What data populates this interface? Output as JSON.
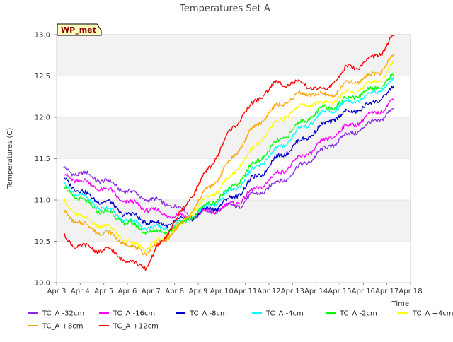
{
  "chart_data": {
    "type": "line",
    "title": "Temperatures Set A",
    "xlabel": "Time",
    "ylabel": "Temperatures (C)",
    "badge": "WP_met",
    "xticks": [
      "Apr 3",
      "Apr 4",
      "Apr 5",
      "Apr 6",
      "Apr 7",
      "Apr 8",
      "Apr 9",
      "Apr 10",
      "Apr 11",
      "Apr 12",
      "Apr 13",
      "Apr 14",
      "Apr 15",
      "Apr 16",
      "Apr 17",
      "Apr 18"
    ],
    "yticks": [
      "10.0",
      "10.5",
      "11.0",
      "11.5",
      "12.0",
      "12.5",
      "13.0"
    ],
    "xlim": [
      3,
      18
    ],
    "ylim": [
      10.0,
      13.0
    ],
    "grid": "alternating horizontal bands",
    "legend_position": "bottom",
    "x": [
      3.3,
      3.8,
      4.3,
      4.8,
      5.3,
      5.8,
      6.3,
      6.8,
      7.3,
      7.8,
      8.3,
      8.8,
      9.3,
      9.8,
      10.3,
      10.8,
      11.3,
      11.8,
      12.3,
      12.8,
      13.3,
      13.8,
      14.3,
      14.8,
      15.3,
      15.8,
      16.3,
      16.8,
      17.3
    ],
    "series": [
      {
        "name": "TC_A -32cm",
        "color": "#8a2be2",
        "values": [
          11.37,
          11.33,
          11.3,
          11.25,
          11.2,
          11.13,
          11.07,
          11.02,
          10.98,
          10.95,
          10.88,
          10.8,
          10.85,
          10.88,
          10.92,
          10.95,
          11.05,
          11.12,
          11.2,
          11.28,
          11.4,
          11.5,
          11.6,
          11.7,
          11.78,
          11.85,
          11.92,
          12.0,
          12.1
        ]
      },
      {
        "name": "TC_A -16cm",
        "color": "#ff00ff",
        "values": [
          11.3,
          11.25,
          11.2,
          11.15,
          11.1,
          11.0,
          10.95,
          10.9,
          10.85,
          10.82,
          10.8,
          10.8,
          10.85,
          10.88,
          10.93,
          11.0,
          11.1,
          11.2,
          11.3,
          11.4,
          11.5,
          11.6,
          11.7,
          11.8,
          11.88,
          11.95,
          12.02,
          12.1,
          12.2
        ]
      },
      {
        "name": "TC_A -8cm",
        "color": "#0000cd",
        "values": [
          11.25,
          11.15,
          11.05,
          11.0,
          10.95,
          10.85,
          10.8,
          10.75,
          10.7,
          10.72,
          10.75,
          10.8,
          10.88,
          10.92,
          11.0,
          11.1,
          11.25,
          11.35,
          11.5,
          11.6,
          11.7,
          11.8,
          11.9,
          12.0,
          12.05,
          12.1,
          12.15,
          12.25,
          12.35
        ]
      },
      {
        "name": "TC_A -4cm",
        "color": "#00ffff",
        "values": [
          11.18,
          11.1,
          11.0,
          10.92,
          10.87,
          10.78,
          10.72,
          10.68,
          10.65,
          10.68,
          10.72,
          10.82,
          10.9,
          10.98,
          11.08,
          11.2,
          11.35,
          11.48,
          11.6,
          11.72,
          11.85,
          11.95,
          12.05,
          12.1,
          12.18,
          12.22,
          12.28,
          12.35,
          12.45
        ]
      },
      {
        "name": "TC_A -2cm",
        "color": "#00ff00",
        "values": [
          11.15,
          11.05,
          10.95,
          10.88,
          10.83,
          10.75,
          10.68,
          10.63,
          10.6,
          10.65,
          10.7,
          10.82,
          10.92,
          11.02,
          11.12,
          11.25,
          11.42,
          11.55,
          11.68,
          11.8,
          11.92,
          12.02,
          12.1,
          12.15,
          12.22,
          12.28,
          12.33,
          12.4,
          12.5
        ]
      },
      {
        "name": "TC_A +4cm",
        "color": "#ffff00",
        "values": [
          10.98,
          10.85,
          10.75,
          10.7,
          10.65,
          10.55,
          10.45,
          10.42,
          10.5,
          10.6,
          10.7,
          10.88,
          11.0,
          11.12,
          11.25,
          11.45,
          11.6,
          11.78,
          11.92,
          12.05,
          12.12,
          12.18,
          12.15,
          12.22,
          12.3,
          12.35,
          12.4,
          12.48,
          12.65
        ]
      },
      {
        "name": "TC_A +8cm",
        "color": "#ffa500",
        "values": [
          10.85,
          10.75,
          10.68,
          10.62,
          10.58,
          10.5,
          10.4,
          10.38,
          10.45,
          10.58,
          10.7,
          10.9,
          11.1,
          11.25,
          11.45,
          11.65,
          11.85,
          12.0,
          12.12,
          12.2,
          12.28,
          12.3,
          12.25,
          12.3,
          12.4,
          12.45,
          12.5,
          12.58,
          12.75
        ]
      },
      {
        "name": "TC_A +12cm",
        "color": "#ff0000",
        "values": [
          10.55,
          10.45,
          10.42,
          10.4,
          10.38,
          10.3,
          10.22,
          10.2,
          10.42,
          10.65,
          10.85,
          11.1,
          11.3,
          11.55,
          11.8,
          12.0,
          12.15,
          12.3,
          12.4,
          12.42,
          12.4,
          12.38,
          12.3,
          12.45,
          12.6,
          12.62,
          12.7,
          12.8,
          12.98
        ]
      }
    ]
  }
}
